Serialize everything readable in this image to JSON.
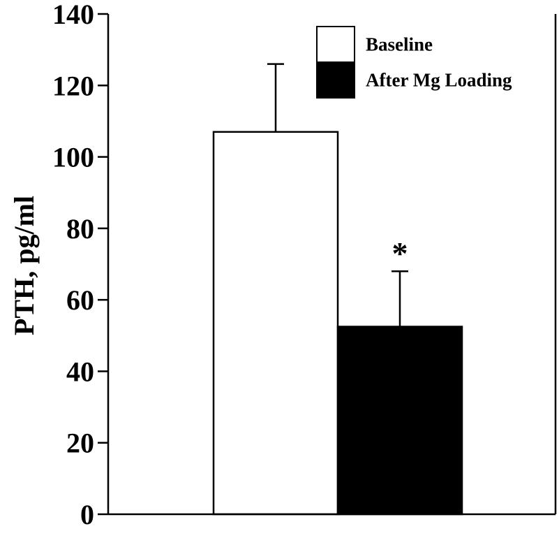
{
  "chart_data": {
    "type": "bar",
    "title": "",
    "xlabel": "",
    "ylabel": "PTH, pg/ml",
    "ylim": [
      0,
      140
    ],
    "yticks": [
      0,
      20,
      40,
      60,
      80,
      100,
      120,
      140
    ],
    "ytick_labels": [
      "0",
      "20",
      "40",
      "60",
      "80",
      "100",
      "120",
      "140"
    ],
    "grid": false,
    "legend_position": "top-right",
    "series": [
      {
        "name": "Baseline",
        "value": 107,
        "error": 19,
        "color": "#ffffff",
        "annotation": ""
      },
      {
        "name": "After Mg Loading",
        "value": 52.5,
        "error": 15.5,
        "color": "#000000",
        "annotation": "*"
      }
    ]
  }
}
